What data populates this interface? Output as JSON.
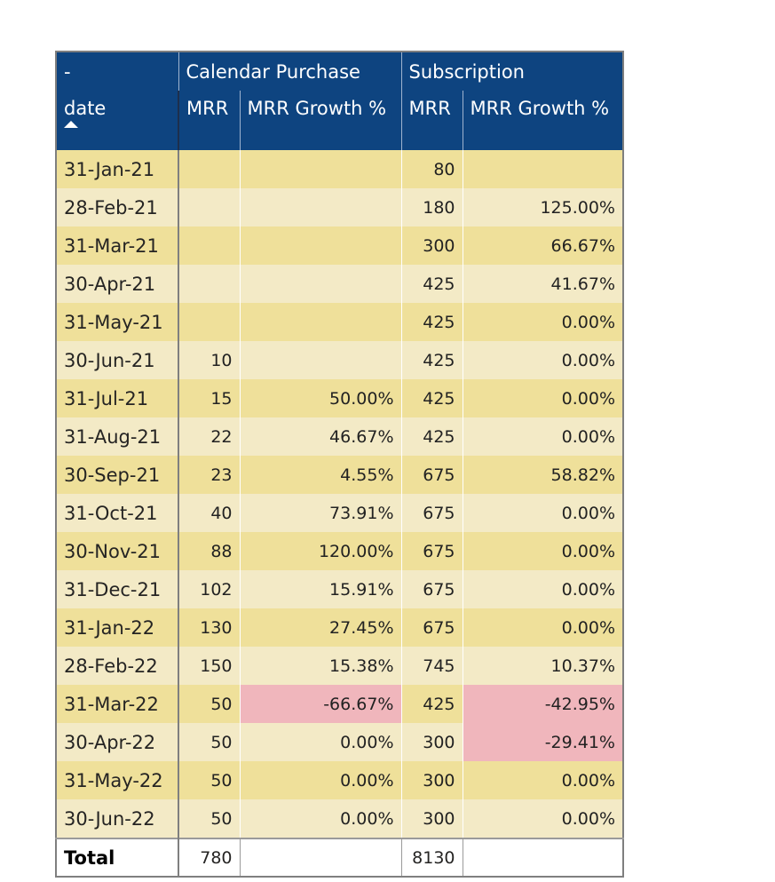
{
  "table": {
    "corner_label": "-",
    "groups": [
      "Calendar Purchase",
      "Subscription"
    ],
    "date_header": "date",
    "sub_headers": [
      "MRR",
      "MRR Growth %",
      "MRR",
      "MRR Growth %"
    ],
    "rows": [
      {
        "date": "31-Jan-21",
        "cp_mrr": "",
        "cp_growth": "",
        "sub_mrr": "80",
        "sub_growth": ""
      },
      {
        "date": "28-Feb-21",
        "cp_mrr": "",
        "cp_growth": "",
        "sub_mrr": "180",
        "sub_growth": "125.00%"
      },
      {
        "date": "31-Mar-21",
        "cp_mrr": "",
        "cp_growth": "",
        "sub_mrr": "300",
        "sub_growth": "66.67%"
      },
      {
        "date": "30-Apr-21",
        "cp_mrr": "",
        "cp_growth": "",
        "sub_mrr": "425",
        "sub_growth": "41.67%"
      },
      {
        "date": "31-May-21",
        "cp_mrr": "",
        "cp_growth": "",
        "sub_mrr": "425",
        "sub_growth": "0.00%"
      },
      {
        "date": "30-Jun-21",
        "cp_mrr": "10",
        "cp_growth": "",
        "sub_mrr": "425",
        "sub_growth": "0.00%"
      },
      {
        "date": "31-Jul-21",
        "cp_mrr": "15",
        "cp_growth": "50.00%",
        "sub_mrr": "425",
        "sub_growth": "0.00%"
      },
      {
        "date": "31-Aug-21",
        "cp_mrr": "22",
        "cp_growth": "46.67%",
        "sub_mrr": "425",
        "sub_growth": "0.00%"
      },
      {
        "date": "30-Sep-21",
        "cp_mrr": "23",
        "cp_growth": "4.55%",
        "sub_mrr": "675",
        "sub_growth": "58.82%"
      },
      {
        "date": "31-Oct-21",
        "cp_mrr": "40",
        "cp_growth": "73.91%",
        "sub_mrr": "675",
        "sub_growth": "0.00%"
      },
      {
        "date": "30-Nov-21",
        "cp_mrr": "88",
        "cp_growth": "120.00%",
        "sub_mrr": "675",
        "sub_growth": "0.00%"
      },
      {
        "date": "31-Dec-21",
        "cp_mrr": "102",
        "cp_growth": "15.91%",
        "sub_mrr": "675",
        "sub_growth": "0.00%"
      },
      {
        "date": "31-Jan-22",
        "cp_mrr": "130",
        "cp_growth": "27.45%",
        "sub_mrr": "675",
        "sub_growth": "0.00%"
      },
      {
        "date": "28-Feb-22",
        "cp_mrr": "150",
        "cp_growth": "15.38%",
        "sub_mrr": "745",
        "sub_growth": "10.37%"
      },
      {
        "date": "31-Mar-22",
        "cp_mrr": "50",
        "cp_growth": "-66.67%",
        "sub_mrr": "425",
        "sub_growth": "-42.95%"
      },
      {
        "date": "30-Apr-22",
        "cp_mrr": "50",
        "cp_growth": "0.00%",
        "sub_mrr": "300",
        "sub_growth": "-29.41%"
      },
      {
        "date": "31-May-22",
        "cp_mrr": "50",
        "cp_growth": "0.00%",
        "sub_mrr": "300",
        "sub_growth": "0.00%"
      },
      {
        "date": "30-Jun-22",
        "cp_mrr": "50",
        "cp_growth": "0.00%",
        "sub_mrr": "300",
        "sub_growth": "0.00%"
      }
    ],
    "total": {
      "label": "Total",
      "cp_mrr": "780",
      "cp_growth": "",
      "sub_mrr": "8130",
      "sub_growth": ""
    }
  },
  "colors": {
    "header_bg": "#0e4480",
    "row_band_a": "#efe09a",
    "row_band_b": "#f3eac6",
    "negative_highlight": "#f0b6bc"
  },
  "icons": {
    "sort": "sort-ascending-icon"
  }
}
